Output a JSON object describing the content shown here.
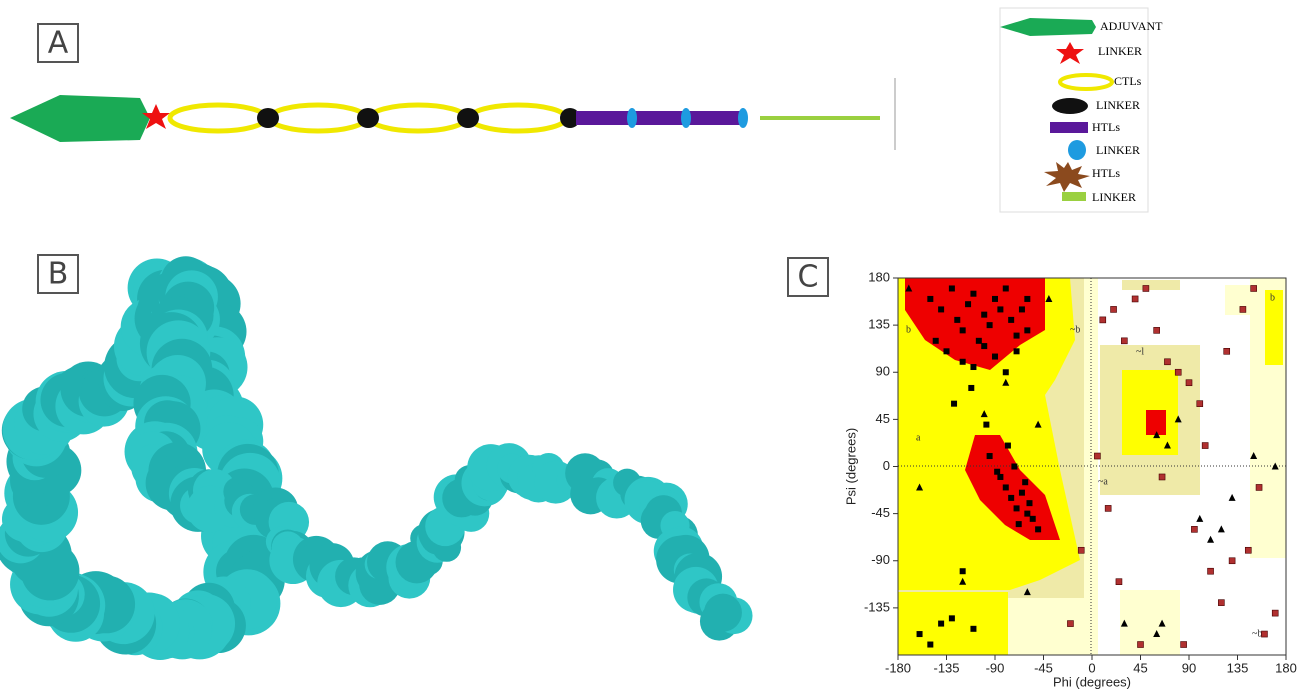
{
  "panels": [
    "A",
    "B",
    "C"
  ],
  "legend": [
    "ADJUVANT",
    "LINKER",
    "CTLs",
    "LINKER",
    "HTLs",
    "LINKER",
    "HTLs",
    "LINKER"
  ],
  "chart_data": {
    "type": "scatter",
    "x_label": "Phi (degrees)",
    "y_label": "Psi (degrees)",
    "xlim": [
      -180,
      180
    ],
    "ylim": [
      -180,
      180
    ],
    "xticks": [
      -180,
      -135,
      -90,
      -45,
      0,
      45,
      90,
      135,
      180
    ],
    "yticks": [
      180,
      135,
      90,
      45,
      0,
      -45,
      -90,
      -135
    ],
    "region_labels": [
      "b",
      "a",
      "~b",
      "~a",
      "~l",
      "b",
      "~b"
    ],
    "series": [
      {
        "color": "#000000",
        "marker": "square",
        "x": [
          -150,
          -140,
          -130,
          -125,
          -120,
          -115,
          -110,
          -105,
          -100,
          -95,
          -90,
          -85,
          -80,
          -75,
          -70,
          -65,
          -60,
          -145,
          -135,
          -120,
          -110,
          -100,
          -90,
          -80,
          -70,
          -60,
          -128,
          -98,
          -78,
          -112,
          -85,
          -80,
          -75,
          -70,
          -65,
          -60,
          -55,
          -50,
          -72,
          -62,
          -58,
          -68,
          -88,
          -95,
          -120,
          -140,
          -160,
          -150,
          -130,
          -110
        ],
        "y": [
          160,
          150,
          170,
          140,
          130,
          155,
          165,
          120,
          145,
          135,
          160,
          150,
          170,
          140,
          125,
          150,
          160,
          120,
          110,
          100,
          95,
          115,
          105,
          90,
          110,
          130,
          60,
          40,
          20,
          75,
          -10,
          -20,
          -30,
          -40,
          -25,
          -45,
          -50,
          -60,
          0,
          -15,
          -35,
          -55,
          -5,
          10,
          -100,
          -150,
          -160,
          -170,
          -145,
          -155
        ]
      },
      {
        "color": "#000000",
        "marker": "triangle",
        "x": [
          -170,
          -160,
          -120,
          -100,
          -80,
          -60,
          -50,
          -40,
          30,
          60,
          70,
          80,
          100,
          110,
          120,
          130,
          150,
          170,
          60,
          65
        ],
        "y": [
          170,
          -20,
          -110,
          50,
          80,
          -120,
          40,
          160,
          -150,
          30,
          20,
          45,
          -50,
          -70,
          -60,
          -30,
          10,
          0,
          -160,
          -150
        ]
      },
      {
        "color": "#b03030",
        "marker": "square",
        "x": [
          10,
          20,
          30,
          40,
          50,
          60,
          70,
          80,
          90,
          100,
          110,
          120,
          130,
          140,
          150,
          160,
          170,
          15,
          25,
          85,
          95,
          105,
          125,
          145,
          155,
          45,
          -20,
          -10,
          5,
          65
        ],
        "y": [
          140,
          150,
          120,
          160,
          170,
          130,
          100,
          90,
          80,
          60,
          -100,
          -130,
          -90,
          150,
          170,
          -160,
          -140,
          -40,
          -110,
          -170,
          -60,
          20,
          110,
          -80,
          -20,
          -170,
          -150,
          -80,
          10,
          -10
        ]
      }
    ]
  }
}
